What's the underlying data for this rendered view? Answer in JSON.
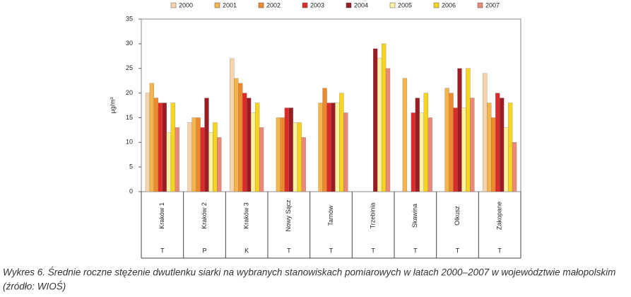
{
  "chart_data": {
    "type": "bar",
    "y_label": "µg/m³",
    "categories": [
      "Kraków 1",
      "Kraków 2",
      "Kraków 3",
      "Nowy Sącz",
      "Tarnów",
      "Trzebinia",
      "Skawina",
      "Olkusz",
      "Zakopane"
    ],
    "site_types": [
      "T",
      "P",
      "K",
      "T",
      "T",
      "T",
      "T",
      "T",
      "T"
    ],
    "ylim": [
      0,
      35
    ],
    "yticks": [
      0,
      5,
      10,
      15,
      20,
      25,
      30,
      35
    ],
    "series": [
      {
        "name": "2000",
        "color": "#fbd3ab",
        "values": [
          20,
          14,
          27,
          null,
          null,
          null,
          null,
          null,
          24
        ]
      },
      {
        "name": "2001",
        "color": "#f5b54a",
        "values": [
          22,
          15,
          23,
          15,
          18,
          null,
          23,
          21,
          18
        ]
      },
      {
        "name": "2002",
        "color": "#ef8a2c",
        "values": [
          19,
          15,
          22,
          15,
          21,
          null,
          null,
          20,
          15
        ]
      },
      {
        "name": "2003",
        "color": "#df2a2a",
        "values": [
          18,
          13,
          20,
          17,
          18,
          null,
          16,
          17,
          20
        ]
      },
      {
        "name": "2004",
        "color": "#9d1c24",
        "values": [
          18,
          19,
          19,
          17,
          18,
          29,
          19,
          25,
          19
        ]
      },
      {
        "name": "2005",
        "color": "#fdf3a0",
        "values": [
          12,
          12,
          16,
          14,
          18,
          27,
          16,
          17,
          13
        ]
      },
      {
        "name": "2006",
        "color": "#f8d51c",
        "values": [
          18,
          14,
          18,
          14,
          20,
          30,
          20,
          25,
          18
        ]
      },
      {
        "name": "2007",
        "color": "#ec8878",
        "values": [
          13,
          11,
          13,
          11,
          16,
          25,
          15,
          19,
          10
        ]
      }
    ],
    "caption": [
      "Wykres 6. Średnie roczne stężenie dwutlenku siarki na wybranych stanowiskach pomiarowych w latach 2000–2007 w województwie małopolskim",
      "(źródło: WIOŚ)"
    ]
  }
}
